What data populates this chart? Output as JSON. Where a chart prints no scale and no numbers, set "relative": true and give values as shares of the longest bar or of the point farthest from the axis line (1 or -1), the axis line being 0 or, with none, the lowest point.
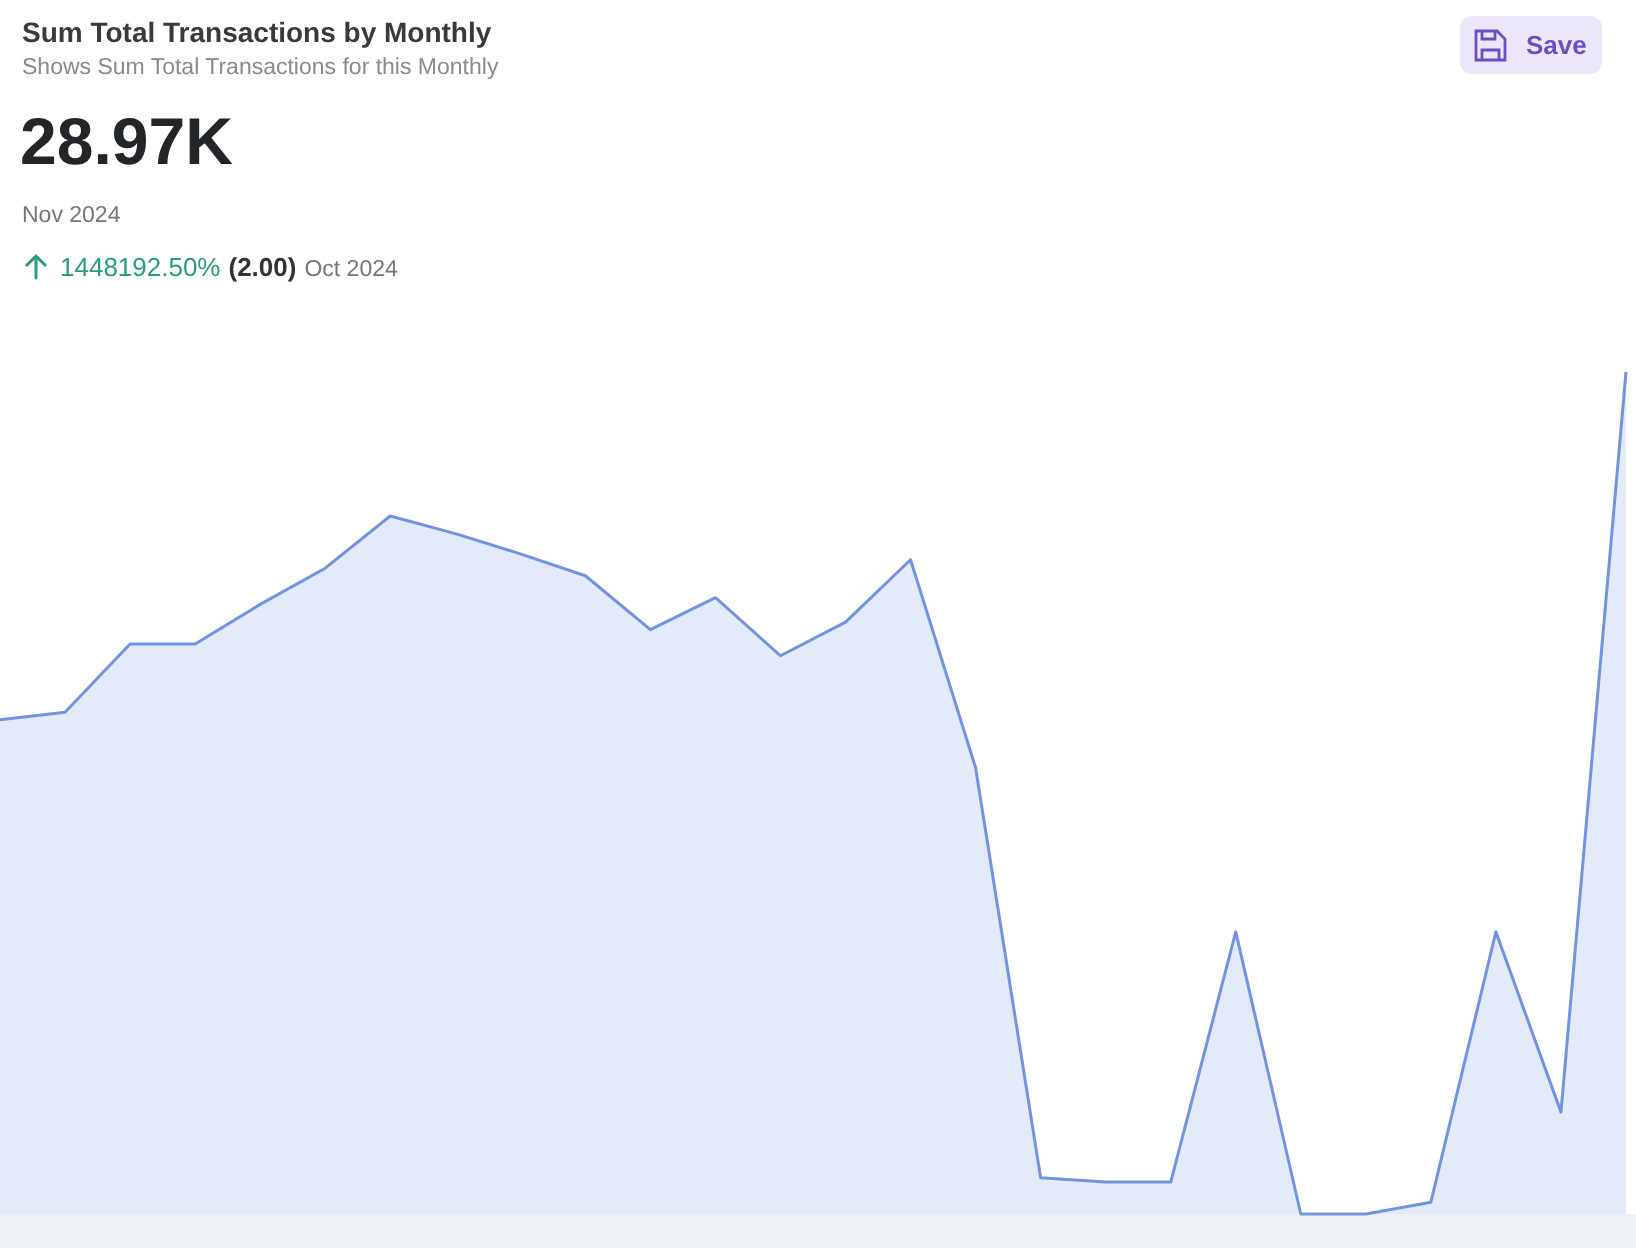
{
  "chart_data": {
    "type": "area",
    "relative": true,
    "title": "Sum Total Transactions by Monthly",
    "subtitle": "Shows Sum Total Transactions for this Monthly",
    "annotations": [
      "28.97K",
      "Nov 2024",
      "1448192.50%",
      "(2.00)",
      "Oct 2024",
      "Save"
    ],
    "categories": [
      null,
      null,
      null,
      null,
      null,
      null,
      null,
      null,
      null,
      null,
      null,
      null,
      null,
      null,
      null,
      null,
      null,
      null,
      null,
      null,
      null,
      null,
      null,
      null,
      null,
      null
    ],
    "series": [
      {
        "color": "#7294e0",
        "values": [
          0.587,
          0.596,
          0.677,
          0.677,
          0.724,
          0.767,
          0.829,
          0.808,
          0.784,
          0.758,
          0.694,
          0.732,
          0.663,
          0.703,
          0.777,
          0.53,
          0.043,
          0.038,
          0.038,
          0.335,
          0,
          0,
          0.014,
          0.335,
          0.121,
          1
        ]
      }
    ]
  }
}
